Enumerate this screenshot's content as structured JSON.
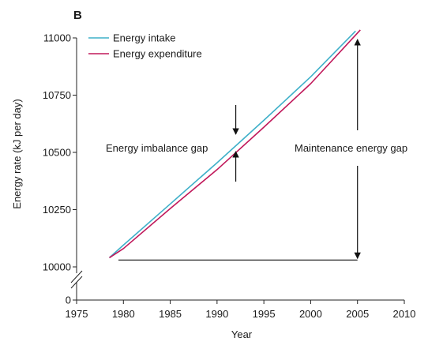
{
  "chart_data": {
    "type": "line",
    "panel_label": "B",
    "xlabel": "Year",
    "ylabel": "Energy rate (kJ per day)",
    "xlim": [
      1975,
      2010
    ],
    "x_ticks": [
      "1975",
      "1980",
      "1985",
      "1990",
      "1995",
      "2000",
      "2005",
      "2010"
    ],
    "y_ticks_upper": [
      "10000",
      "10250",
      "10500",
      "10750",
      "11000"
    ],
    "y_tick_lower": "0",
    "ylim_upper": [
      10000,
      11000
    ],
    "axis_break": true,
    "legend_position": "top-left",
    "series": [
      {
        "name": "Energy intake",
        "color": "#3fb0c9",
        "x": [
          1978.5,
          1980,
          1985,
          1990,
          1995,
          2000,
          2004.8
        ],
        "y": [
          10040,
          10095,
          10275,
          10455,
          10640,
          10830,
          11030
        ]
      },
      {
        "name": "Energy expenditure",
        "color": "#c0185a",
        "x": [
          1978.5,
          1980,
          1985,
          1990,
          1995,
          2000,
          2005.3
        ],
        "y": [
          10040,
          10080,
          10255,
          10425,
          10610,
          10800,
          11035
        ]
      }
    ],
    "annotations": [
      {
        "text": "Energy imbalance gap",
        "at_year": 1992
      },
      {
        "text": "Maintenance energy gap",
        "at_year": 2005,
        "from": 10030,
        "to": 11000
      }
    ]
  }
}
